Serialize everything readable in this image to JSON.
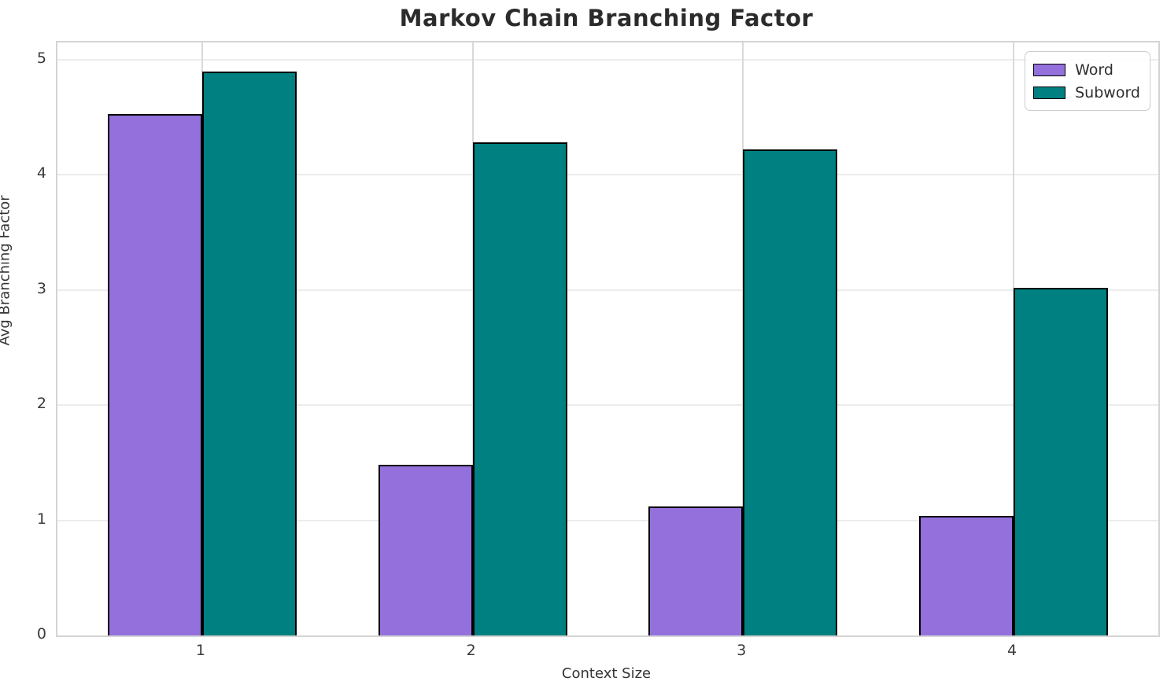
{
  "figure": {
    "title": "Markov Chain Branching Factor",
    "xlabel": "Context Size",
    "ylabel": "Avg Branching Factor"
  },
  "legend": {
    "items": [
      {
        "label": "Word",
        "color": "#9370DB"
      },
      {
        "label": "Subword",
        "color": "#008080"
      }
    ]
  },
  "chart_data": {
    "type": "bar",
    "title": "Markov Chain Branching Factor",
    "xlabel": "Context Size",
    "ylabel": "Avg Branching Factor",
    "categories": [
      "1",
      "2",
      "3",
      "4"
    ],
    "series": [
      {
        "name": "Word",
        "color": "#9370DB",
        "values": [
          4.53,
          1.48,
          1.12,
          1.04
        ]
      },
      {
        "name": "Subword",
        "color": "#008080",
        "values": [
          4.9,
          4.28,
          4.22,
          3.02
        ]
      }
    ],
    "yticks": [
      0,
      1,
      2,
      3,
      4,
      5
    ],
    "ylim": [
      0,
      5.15
    ],
    "bar_edge_color": "#000000",
    "grid": true,
    "legend_position": "upper right"
  }
}
